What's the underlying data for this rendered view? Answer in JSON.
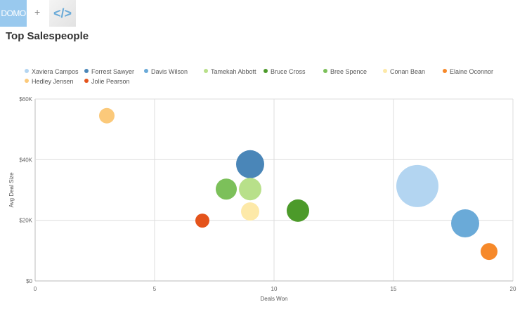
{
  "header": {
    "logo": "DOMO",
    "plus": "+",
    "code_icon": "</>"
  },
  "chart_data": {
    "type": "scatter",
    "title": "Top Salespeople",
    "xlabel": "Deals Won",
    "ylabel": "Avg Deal Size",
    "xlim": [
      0,
      20
    ],
    "ylim": [
      0,
      60000
    ],
    "xticks": [
      {
        "v": 0,
        "label": "0"
      },
      {
        "v": 5,
        "label": "5"
      },
      {
        "v": 10,
        "label": "10"
      },
      {
        "v": 15,
        "label": "15"
      },
      {
        "v": 20,
        "label": "20"
      }
    ],
    "yticks": [
      {
        "v": 0,
        "label": "$0"
      },
      {
        "v": 20000,
        "label": "$20K"
      },
      {
        "v": 40000,
        "label": "$40K"
      },
      {
        "v": 60000,
        "label": "$60K"
      }
    ],
    "grid": true,
    "legend_position": "top",
    "series": [
      {
        "name": "Xaviera Campos",
        "color": "#b3d5f1",
        "x": 16,
        "y": 31300,
        "size": 30
      },
      {
        "name": "Forrest Sawyer",
        "color": "#4a86b8",
        "x": 9,
        "y": 38500,
        "size": 20
      },
      {
        "name": "Davis Wilson",
        "color": "#6aaad8",
        "x": 18,
        "y": 19000,
        "size": 20
      },
      {
        "name": "Tamekah Abbott",
        "color": "#b8e08a",
        "x": 9,
        "y": 30300,
        "size": 16
      },
      {
        "name": "Bruce Cross",
        "color": "#4c9a2a",
        "x": 11,
        "y": 23200,
        "size": 16
      },
      {
        "name": "Bree Spence",
        "color": "#7cc05a",
        "x": 8,
        "y": 30300,
        "size": 15
      },
      {
        "name": "Conan Bean",
        "color": "#fde9a8",
        "x": 9,
        "y": 22900,
        "size": 13
      },
      {
        "name": "Elaine Oconnor",
        "color": "#f6892a",
        "x": 19,
        "y": 9700,
        "size": 12
      },
      {
        "name": "Hedley Jensen",
        "color": "#fbc97a",
        "x": 3,
        "y": 54500,
        "size": 11
      },
      {
        "name": "Jolie Pearson",
        "color": "#e4531b",
        "x": 7,
        "y": 19900,
        "size": 10
      }
    ]
  }
}
